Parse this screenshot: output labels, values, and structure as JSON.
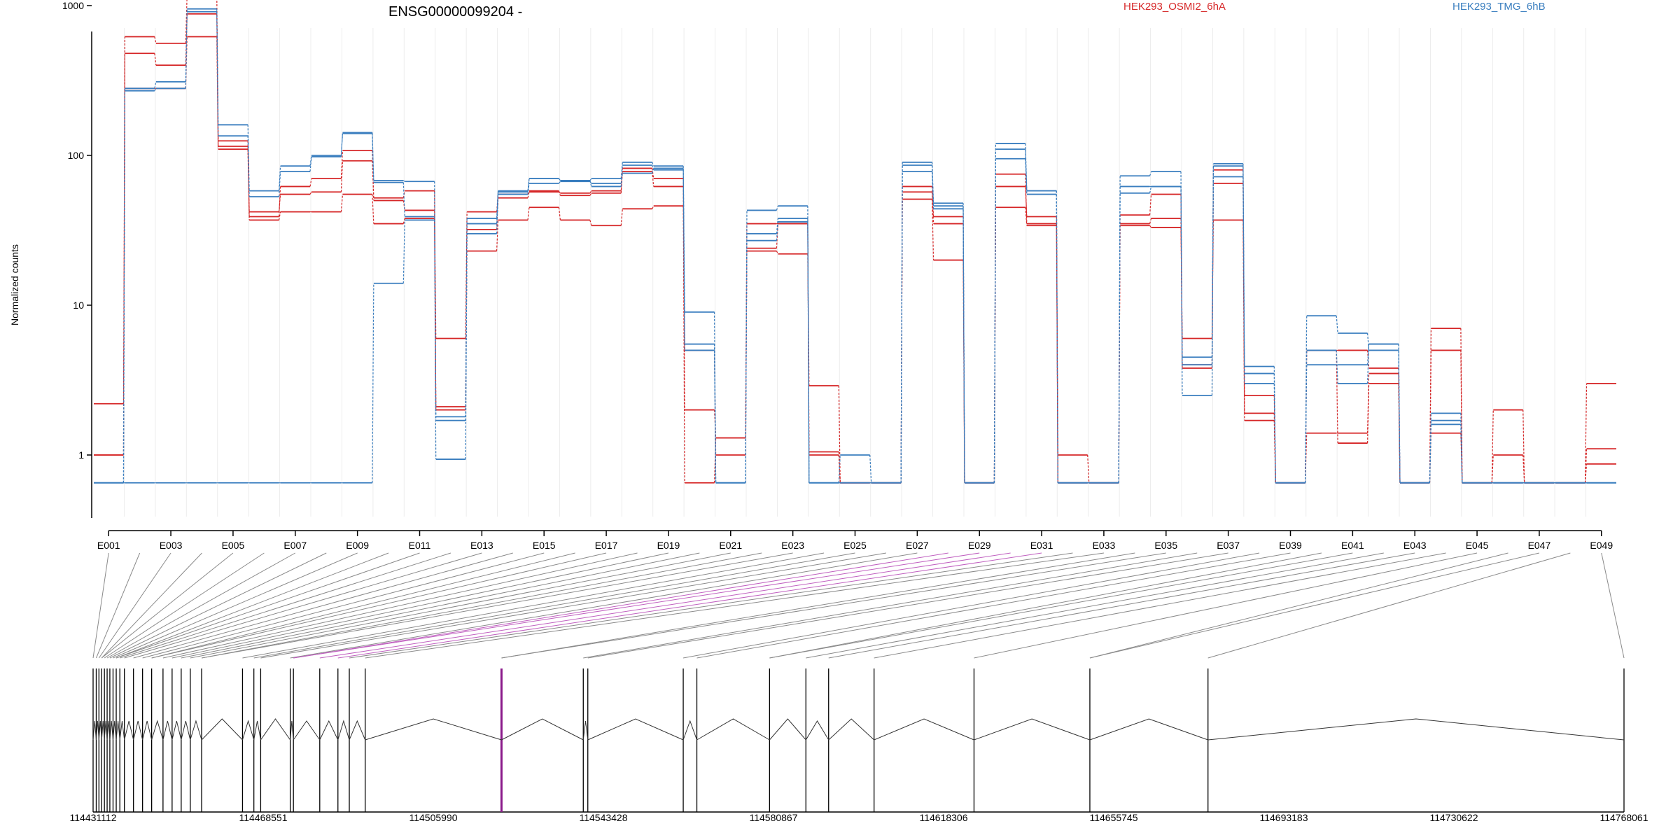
{
  "chart_data": {
    "type": "line",
    "title": "ENSG00000099204 -",
    "ylabel": "Normalized counts",
    "xlabel": "",
    "y_scale": "log",
    "y_ticks": [
      1,
      10,
      100,
      1000
    ],
    "y_tick_labels": [
      "1",
      "10",
      "100",
      "1000"
    ],
    "grid": "vertical exon separators",
    "legend_placement": "top",
    "legend": [
      {
        "label": "HEK293_OSMI2_6hA",
        "color": "#d62728"
      },
      {
        "label": "HEK293_TMG_6hB",
        "color": "#3a7ebf"
      }
    ],
    "categories": [
      "E001",
      "E002",
      "E003",
      "E004",
      "E005",
      "E006",
      "E007",
      "E008",
      "E009",
      "E010",
      "E011",
      "E012",
      "E013",
      "E014",
      "E015",
      "E016",
      "E017",
      "E018",
      "E019",
      "E020",
      "E021",
      "E022",
      "E023",
      "E024",
      "E025",
      "E026",
      "E027",
      "E028",
      "E029",
      "E030",
      "E031",
      "E032",
      "E033",
      "E034",
      "E035",
      "E036",
      "E037",
      "E038",
      "E039",
      "E040",
      "E041",
      "E042",
      "E043",
      "E044",
      "E045",
      "E046",
      "E047",
      "E048",
      "E049"
    ],
    "x_tick_labels": [
      "E001",
      "E003",
      "E005",
      "E007",
      "E009",
      "E011",
      "E013",
      "E015",
      "E017",
      "E019",
      "E021",
      "E023",
      "E025",
      "E027",
      "E029",
      "E031",
      "E033",
      "E035",
      "E037",
      "E039",
      "E041",
      "E043",
      "E045",
      "E047",
      "E049"
    ],
    "series": [
      {
        "group": "HEK293_OSMI2_6hA",
        "values": [
          2.2,
          480,
          400,
          880,
          115,
          42,
          55,
          57,
          92,
          52,
          58,
          2.1,
          32,
          52,
          57,
          56,
          58,
          82,
          70,
          2.0,
          1.3,
          35,
          35,
          1.05,
          0.5,
          0.5,
          62,
          39,
          0.5,
          62,
          39,
          1.0,
          0.5,
          40,
          55,
          4.0,
          65,
          2.5,
          0.5,
          1.4,
          1.4,
          3.5,
          0.5,
          1.4,
          0.5,
          1.0,
          0.5,
          0.5,
          0.8
        ]
      },
      {
        "group": "HEK293_OSMI2_6hA",
        "values": [
          1.0,
          620,
          560,
          1200,
          125,
          39,
          62,
          70,
          108,
          50,
          43,
          6.0,
          42,
          55,
          58,
          54,
          56,
          78,
          62,
          5.0,
          1.0,
          24,
          35,
          1.0,
          0.5,
          0.5,
          57,
          35,
          0.5,
          75,
          35,
          0.5,
          0.5,
          35,
          38,
          3.8,
          80,
          1.9,
          0.5,
          5.0,
          5.0,
          3.8,
          0.5,
          7.0,
          0.5,
          0.5,
          0.5,
          0.5,
          3.0
        ]
      },
      {
        "group": "HEK293_OSMI2_6hA",
        "values": [
          1.0,
          280,
          280,
          620,
          110,
          37,
          42,
          42,
          55,
          35,
          38,
          2.0,
          23,
          37,
          45,
          37,
          34,
          44,
          46,
          0.5,
          1.3,
          23,
          22,
          2.9,
          0.5,
          0.5,
          51,
          20,
          0.5,
          45,
          34,
          0.5,
          0.5,
          34,
          33,
          6.0,
          37,
          1.7,
          0.5,
          5.0,
          1.2,
          3.0,
          0.5,
          5.0,
          0.5,
          2.0,
          0.5,
          0.5,
          1.1
        ]
      },
      {
        "group": "HEK293_TMG_6hB",
        "values": [
          0.5,
          270,
          280,
          910,
          160,
          58,
          85,
          100,
          140,
          68,
          67,
          1.8,
          38,
          57,
          70,
          68,
          70,
          90,
          85,
          5.5,
          0.5,
          43,
          46,
          0.5,
          1.0,
          0.5,
          90,
          48,
          0.5,
          120,
          58,
          0.5,
          0.5,
          73,
          78,
          2.5,
          88,
          3.9,
          0.5,
          8.5,
          6.5,
          5.0,
          0.5,
          1.7,
          0.5,
          0.5,
          0.5,
          0.5,
          0.5
        ]
      },
      {
        "group": "HEK293_TMG_6hB",
        "values": [
          0.5,
          280,
          310,
          950,
          135,
          53,
          78,
          98,
          142,
          66,
          39,
          1.7,
          35,
          58,
          70,
          68,
          62,
          86,
          80,
          9.0,
          0.5,
          30,
          38,
          0.5,
          0.5,
          0.5,
          78,
          46,
          0.5,
          110,
          55,
          0.5,
          0.5,
          62,
          62,
          4.0,
          85,
          3.5,
          0.5,
          5.0,
          3.0,
          5.5,
          0.5,
          1.9,
          0.5,
          0.5,
          0.5,
          0.5,
          0.5
        ]
      },
      {
        "group": "HEK293_TMG_6hB",
        "values": [
          0.5,
          0.5,
          0.5,
          0.5,
          0.5,
          0.5,
          0.5,
          0.5,
          0.5,
          14,
          37,
          0.9,
          30,
          55,
          65,
          67,
          65,
          76,
          82,
          5.0,
          0.5,
          27,
          36,
          0.5,
          0.5,
          0.5,
          86,
          44,
          0.5,
          95,
          58,
          0.5,
          0.5,
          56,
          62,
          4.5,
          72,
          3.0,
          0.5,
          4.0,
          4.0,
          5.5,
          0.5,
          1.6,
          0.5,
          0.5,
          0.5,
          0.5,
          0.5
        ]
      }
    ],
    "genomic_coordinates": {
      "tick_labels": [
        "114431112",
        "114468551",
        "114505990",
        "114543428",
        "114580867",
        "114618306",
        "114655745",
        "114693183",
        "114730622",
        "114768061"
      ],
      "range": [
        114431112,
        114768061
      ],
      "exon_starts": [
        114431112,
        114431800,
        114432400,
        114433000,
        114433600,
        114434200,
        114434800,
        114435500,
        114436200,
        114437000,
        114438000,
        114440000,
        114442000,
        114444000,
        114446500,
        114448500,
        114450500,
        114452500,
        114455000,
        114464000,
        114466500,
        114468000,
        114474500,
        114475200,
        114481000,
        114485000,
        114487500,
        114491000,
        114521000,
        114539000,
        114540000,
        114561000,
        114564000,
        114580000,
        114588000,
        114593000,
        114603000,
        114625000,
        114650500,
        114676500
      ],
      "highlighted_exon_index": 28,
      "highlight_color": "#8b1a8b"
    }
  }
}
